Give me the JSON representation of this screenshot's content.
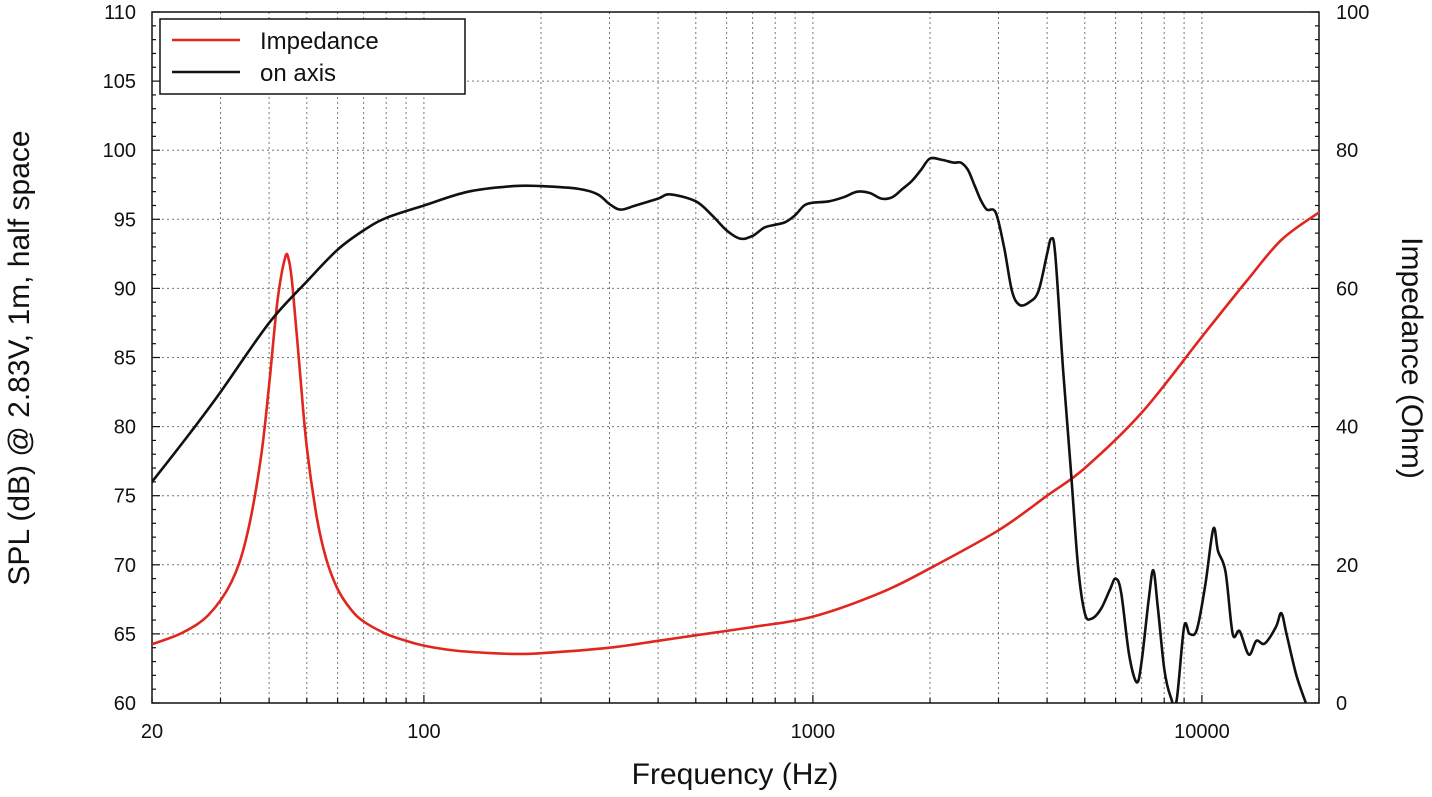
{
  "chart_data": {
    "type": "line",
    "xscale": "log",
    "xlabel": "Frequency (Hz)",
    "ylabel_left": "SPL (dB) @ 2.83V, 1m, half space",
    "ylabel_right": "Impedance (Ohm)",
    "xlim": [
      20,
      20000
    ],
    "ylim_left": [
      60,
      110
    ],
    "ylim_right": [
      0,
      100
    ],
    "x_ticks": [
      20,
      100,
      1000,
      10000
    ],
    "x_tick_labels": [
      "20",
      "100",
      "1000",
      "10000"
    ],
    "y_left_ticks": [
      60,
      65,
      70,
      75,
      80,
      85,
      90,
      95,
      100,
      105,
      110
    ],
    "y_left_tick_labels": [
      "60",
      "65",
      "70",
      "75",
      "80",
      "85",
      "90",
      "95",
      "100",
      "105",
      "110"
    ],
    "y_right_ticks": [
      0,
      20,
      40,
      60,
      80,
      100
    ],
    "y_right_tick_labels": [
      "0",
      "20",
      "40",
      "60",
      "80",
      "100"
    ],
    "legend": {
      "position": "top-left",
      "entries": [
        "Impedance",
        "on axis"
      ]
    },
    "series": [
      {
        "name": "Impedance",
        "axis": "right",
        "color": "#e0261f",
        "points": [
          [
            20,
            8.5
          ],
          [
            24,
            10.2
          ],
          [
            28,
            12.8
          ],
          [
            32,
            17.5
          ],
          [
            35,
            24
          ],
          [
            38,
            35
          ],
          [
            40,
            46
          ],
          [
            42,
            58
          ],
          [
            44,
            64.5
          ],
          [
            45,
            64
          ],
          [
            46,
            60
          ],
          [
            48,
            48
          ],
          [
            50,
            37
          ],
          [
            53,
            27
          ],
          [
            56,
            21
          ],
          [
            60,
            16.5
          ],
          [
            65,
            13.5
          ],
          [
            70,
            11.8
          ],
          [
            80,
            10
          ],
          [
            90,
            9
          ],
          [
            100,
            8.3
          ],
          [
            120,
            7.6
          ],
          [
            150,
            7.2
          ],
          [
            170,
            7.1
          ],
          [
            200,
            7.2
          ],
          [
            300,
            8
          ],
          [
            400,
            9
          ],
          [
            500,
            9.8
          ],
          [
            700,
            11
          ],
          [
            1000,
            12.5
          ],
          [
            1500,
            16
          ],
          [
            2000,
            19.5
          ],
          [
            3000,
            25
          ],
          [
            4000,
            30
          ],
          [
            5000,
            34
          ],
          [
            7000,
            42
          ],
          [
            10000,
            53
          ],
          [
            13000,
            61
          ],
          [
            16000,
            67
          ],
          [
            20000,
            71
          ]
        ]
      },
      {
        "name": "on axis",
        "axis": "left",
        "color": "#111111",
        "points": [
          [
            20,
            76
          ],
          [
            25,
            79.5
          ],
          [
            30,
            82.5
          ],
          [
            40,
            87.5
          ],
          [
            50,
            90.5
          ],
          [
            60,
            92.8
          ],
          [
            70,
            94.2
          ],
          [
            80,
            95.1
          ],
          [
            100,
            96
          ],
          [
            130,
            97
          ],
          [
            170,
            97.4
          ],
          [
            200,
            97.4
          ],
          [
            250,
            97.2
          ],
          [
            280,
            96.8
          ],
          [
            300,
            96.1
          ],
          [
            320,
            95.7
          ],
          [
            350,
            96
          ],
          [
            400,
            96.5
          ],
          [
            430,
            96.8
          ],
          [
            500,
            96.3
          ],
          [
            550,
            95.3
          ],
          [
            600,
            94.2
          ],
          [
            650,
            93.6
          ],
          [
            700,
            93.8
          ],
          [
            750,
            94.4
          ],
          [
            800,
            94.6
          ],
          [
            850,
            94.8
          ],
          [
            900,
            95.3
          ],
          [
            950,
            96
          ],
          [
            1000,
            96.2
          ],
          [
            1100,
            96.3
          ],
          [
            1200,
            96.6
          ],
          [
            1300,
            97
          ],
          [
            1400,
            96.9
          ],
          [
            1500,
            96.5
          ],
          [
            1600,
            96.6
          ],
          [
            1700,
            97.2
          ],
          [
            1800,
            97.8
          ],
          [
            1900,
            98.6
          ],
          [
            2000,
            99.4
          ],
          [
            2150,
            99.3
          ],
          [
            2300,
            99.1
          ],
          [
            2400,
            99.1
          ],
          [
            2500,
            98.6
          ],
          [
            2600,
            97.5
          ],
          [
            2700,
            96.4
          ],
          [
            2800,
            95.7
          ],
          [
            2950,
            95.5
          ],
          [
            3100,
            93
          ],
          [
            3250,
            89.8
          ],
          [
            3400,
            88.8
          ],
          [
            3600,
            89
          ],
          [
            3800,
            89.8
          ],
          [
            4000,
            92.5
          ],
          [
            4100,
            93.6
          ],
          [
            4200,
            92.4
          ],
          [
            4400,
            84
          ],
          [
            4600,
            77
          ],
          [
            4800,
            70
          ],
          [
            5000,
            66.5
          ],
          [
            5200,
            66.1
          ],
          [
            5500,
            66.8
          ],
          [
            5800,
            68.2
          ],
          [
            6000,
            69
          ],
          [
            6200,
            68
          ],
          [
            6500,
            63.5
          ],
          [
            6800,
            61.5
          ],
          [
            7000,
            63
          ],
          [
            7300,
            67.5
          ],
          [
            7500,
            69.6
          ],
          [
            7700,
            67
          ],
          [
            8000,
            62.5
          ],
          [
            8300,
            60.5
          ],
          [
            8600,
            60.1
          ],
          [
            9000,
            65.5
          ],
          [
            9300,
            65
          ],
          [
            9700,
            65.3
          ],
          [
            10200,
            68.5
          ],
          [
            10700,
            72.6
          ],
          [
            11000,
            71
          ],
          [
            11500,
            69.5
          ],
          [
            12000,
            65
          ],
          [
            12500,
            65.2
          ],
          [
            13200,
            63.5
          ],
          [
            13800,
            64.5
          ],
          [
            14500,
            64.3
          ],
          [
            15500,
            65.5
          ],
          [
            16000,
            66.5
          ],
          [
            16500,
            65
          ],
          [
            17500,
            62
          ],
          [
            18500,
            60
          ]
        ]
      }
    ]
  }
}
